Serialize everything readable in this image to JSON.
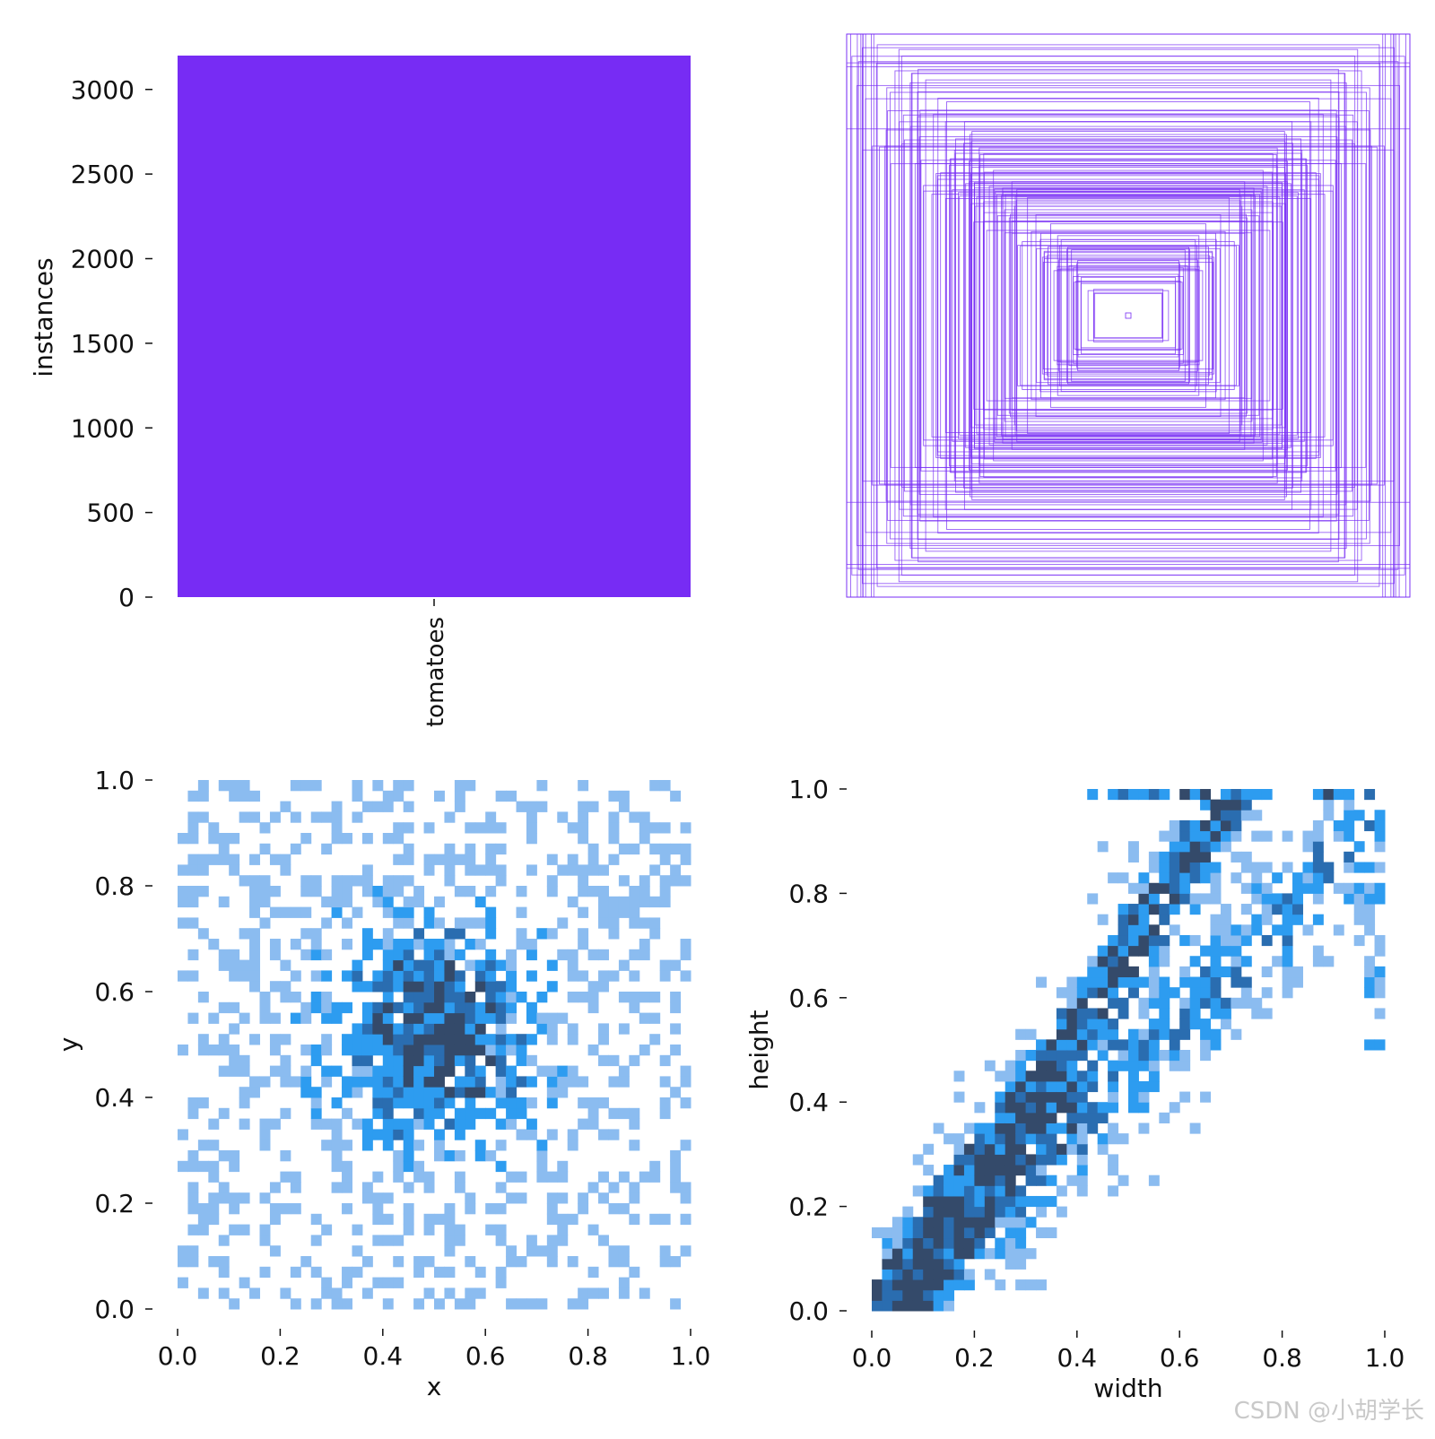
{
  "watermark": "CSDN @小胡学长",
  "chart_data": [
    {
      "type": "bar",
      "categories": [
        "tomatoes"
      ],
      "values": [
        3200
      ],
      "ylabel": "instances",
      "xlabel": "",
      "ylim": [
        0,
        3200
      ],
      "yticks": [
        "0",
        "500",
        "1000",
        "1500",
        "2000",
        "2500",
        "3000"
      ],
      "color": "#772cf4"
    },
    {
      "type": "scatter",
      "description_kind": "box-outlines",
      "xlim": [
        0,
        1
      ],
      "ylim": [
        0,
        1
      ],
      "color": "#772cf4",
      "box_sizes": {
        "width_range": [
          0.01,
          1.0
        ],
        "height_range": [
          0.01,
          1.0
        ],
        "count": 160
      }
    },
    {
      "type": "heatmap",
      "xlabel": "x",
      "ylabel": "y",
      "xlim": [
        0,
        1
      ],
      "ylim": [
        0,
        1
      ],
      "xticks": [
        "0.0",
        "0.2",
        "0.4",
        "0.6",
        "0.8",
        "1.0"
      ],
      "yticks": [
        "0.0",
        "0.2",
        "0.4",
        "0.6",
        "0.8",
        "1.0"
      ],
      "bins": 50,
      "peak": {
        "x": 0.5,
        "y": 0.52
      }
    },
    {
      "type": "heatmap",
      "xlabel": "width",
      "ylabel": "height",
      "xlim": [
        0,
        1
      ],
      "ylim": [
        0,
        1
      ],
      "xticks": [
        "0.0",
        "0.2",
        "0.4",
        "0.6",
        "0.8",
        "1.0"
      ],
      "yticks": [
        "0.0",
        "0.2",
        "0.4",
        "0.6",
        "0.8",
        "1.0"
      ],
      "bins": 50,
      "trend": "height increases with width"
    }
  ],
  "palette": {
    "bar": "#772cf4",
    "hist_light": "#8bbcf0",
    "hist_mid": "#2d9cf0",
    "hist_dark": "#2a6db0",
    "hist_darkest": "#344a6a"
  }
}
